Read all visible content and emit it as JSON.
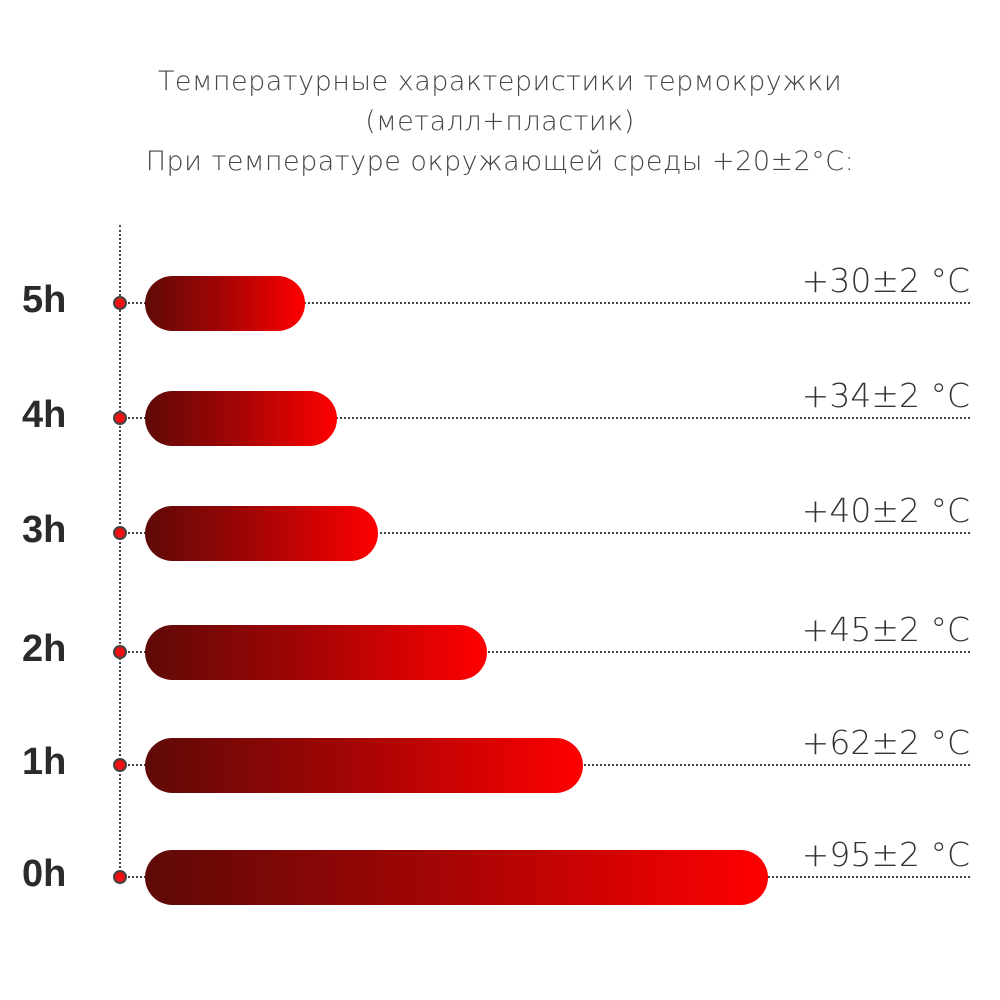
{
  "chart_data": {
    "type": "bar",
    "orientation": "horizontal",
    "title": [
      "Температурные характеристики термокружки",
      "(металл+пластик)",
      "При температуре окружающей среды +20±2°C:"
    ],
    "categories": [
      "5h",
      "4h",
      "3h",
      "2h",
      "1h",
      "0h"
    ],
    "values": [
      30,
      34,
      40,
      45,
      62,
      95
    ],
    "value_labels": [
      "+30±2 °C",
      "+34±2 °C",
      "+40±2 °C",
      "+45±2 °C",
      "+62±2 °C",
      "+95±2 °C"
    ],
    "unit": "°C",
    "colors": {
      "bar_start": "#5e0a07",
      "bar_end": "#ff0000",
      "dot": "#ee1111",
      "text": "#333333"
    }
  }
}
